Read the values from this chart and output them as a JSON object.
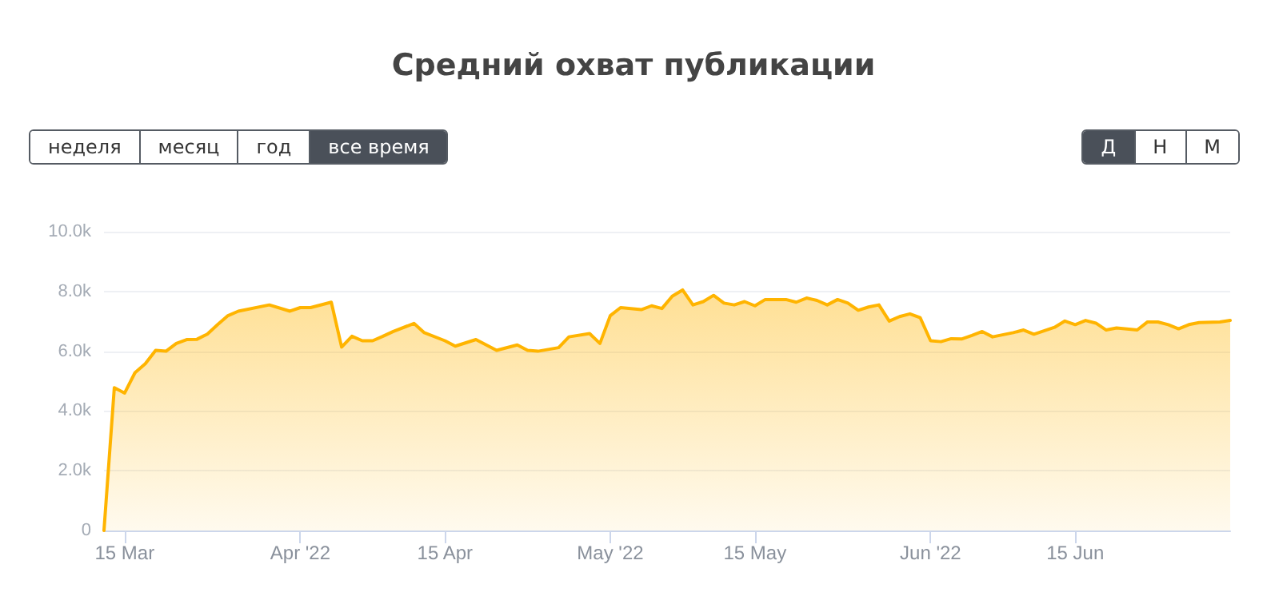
{
  "chart_data": {
    "type": "area",
    "title": "Средний охват публикации",
    "annotations": [
      "неделя",
      "месяц",
      "год",
      "все время",
      "Д",
      "Н",
      "М"
    ],
    "x": [
      "2022-03-13",
      "2022-03-14",
      "2022-03-15",
      "2022-03-16",
      "2022-03-17",
      "2022-03-18",
      "2022-03-19",
      "2022-03-20",
      "2022-03-21",
      "2022-03-22",
      "2022-03-23",
      "2022-03-24",
      "2022-03-25",
      "2022-03-26",
      "2022-03-29",
      "2022-03-31",
      "2022-04-01",
      "2022-04-02",
      "2022-04-04",
      "2022-04-05",
      "2022-04-06",
      "2022-04-07",
      "2022-04-08",
      "2022-04-09",
      "2022-04-10",
      "2022-04-12",
      "2022-04-13",
      "2022-04-15",
      "2022-04-16",
      "2022-04-18",
      "2022-04-20",
      "2022-04-22",
      "2022-04-23",
      "2022-04-24",
      "2022-04-26",
      "2022-04-27",
      "2022-04-29",
      "2022-04-30",
      "2022-05-01",
      "2022-05-02",
      "2022-05-04",
      "2022-05-05",
      "2022-05-06",
      "2022-05-07",
      "2022-05-08",
      "2022-05-09",
      "2022-05-10",
      "2022-05-11",
      "2022-05-12",
      "2022-05-13",
      "2022-05-14",
      "2022-05-15",
      "2022-05-16",
      "2022-05-18",
      "2022-05-19",
      "2022-05-20",
      "2022-05-21",
      "2022-05-22",
      "2022-05-23",
      "2022-05-24",
      "2022-05-25",
      "2022-05-26",
      "2022-05-27",
      "2022-05-28",
      "2022-05-29",
      "2022-05-30",
      "2022-05-31",
      "2022-06-01",
      "2022-06-02",
      "2022-06-03",
      "2022-06-04",
      "2022-06-05",
      "2022-06-06",
      "2022-06-07",
      "2022-06-09",
      "2022-06-10",
      "2022-06-11",
      "2022-06-13",
      "2022-06-14",
      "2022-06-15",
      "2022-06-16",
      "2022-06-17",
      "2022-06-18",
      "2022-06-19",
      "2022-06-21",
      "2022-06-22",
      "2022-06-23",
      "2022-06-24",
      "2022-06-25",
      "2022-06-26",
      "2022-06-27",
      "2022-06-29",
      "2022-06-30"
    ],
    "series": [
      {
        "color": "#ffb400",
        "values": [
          0,
          4780,
          4600,
          5280,
          5580,
          6030,
          6000,
          6260,
          6390,
          6400,
          6570,
          6890,
          7190,
          7340,
          7550,
          7340,
          7460,
          7460,
          7640,
          6140,
          6500,
          6350,
          6350,
          6500,
          6660,
          6930,
          6620,
          6350,
          6170,
          6390,
          6030,
          6210,
          6030,
          6000,
          6120,
          6480,
          6590,
          6260,
          7190,
          7460,
          7390,
          7520,
          7430,
          7840,
          8050,
          7550,
          7660,
          7870,
          7610,
          7550,
          7660,
          7520,
          7730,
          7730,
          7640,
          7780,
          7700,
          7550,
          7730,
          7610,
          7370,
          7480,
          7550,
          7010,
          7160,
          7250,
          7120,
          6350,
          6320,
          6420,
          6410,
          6530,
          6660,
          6480,
          6620,
          6710,
          6570,
          6800,
          7010,
          6890,
          7030,
          6940,
          6710,
          6780,
          6710,
          6980,
          6980,
          6890,
          6750,
          6890,
          6960,
          6980,
          7030
        ]
      }
    ],
    "xlim": [
      "2022-03-13",
      "2022-06-30"
    ],
    "xticks": [
      {
        "value": "2022-03-15",
        "label": "15 Mar"
      },
      {
        "value": "2022-04-01",
        "label": "Apr '22"
      },
      {
        "value": "2022-04-15",
        "label": "15 Apr"
      },
      {
        "value": "2022-05-01",
        "label": "May '22"
      },
      {
        "value": "2022-05-15",
        "label": "15 May"
      },
      {
        "value": "2022-06-01",
        "label": "Jun '22"
      },
      {
        "value": "2022-06-15",
        "label": "15 Jun"
      }
    ],
    "ylim": [
      0,
      10000
    ],
    "yticks": [
      0,
      {
        "value": 2000,
        "label": "2.0k"
      },
      {
        "value": 4000,
        "label": "4.0k"
      },
      {
        "value": 6000,
        "label": "6.0k"
      },
      {
        "value": 8000,
        "label": "8.0k"
      },
      {
        "value": 10000,
        "label": "10.0k"
      }
    ],
    "grid": "y",
    "marker": "none",
    "line_style": "solid"
  }
}
